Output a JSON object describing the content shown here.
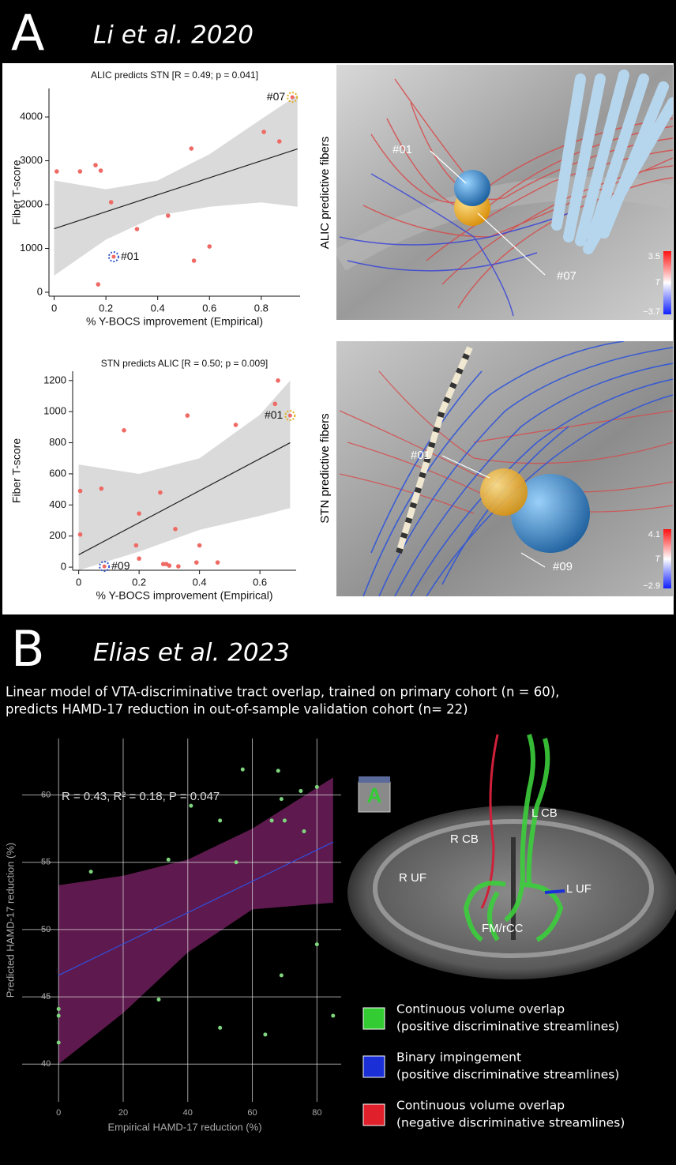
{
  "panel_a": {
    "letter": "A",
    "heading": "Li et al. 2020",
    "images": [
      {
        "side_label": "ALIC predictive fibers",
        "markers": [
          "#01",
          "#07"
        ],
        "colorbar": {
          "max": 3.5,
          "symbol": "T",
          "min": {
            "value": -3.7,
            "label": "−3.7"
          }
        }
      },
      {
        "side_label": "STN predictive fibers",
        "markers": [
          "#01",
          "#09"
        ],
        "colorbar": {
          "max": 4.1,
          "symbol": "T",
          "min": {
            "value": -2.9,
            "label": "−2.9"
          }
        }
      }
    ]
  },
  "panel_b": {
    "letter": "B",
    "heading": "Elias et al. 2023",
    "caption": [
      "Linear model of VTA-discriminative tract overlap, trained on primary cohort (n = 60),",
      "predicts HAMD-17 reduction in out-of-sample validation cohort (n= 22)"
    ],
    "image": {
      "orientation_cube": "A",
      "tract_labels": [
        "L CB",
        "R CB",
        "R UF",
        "L UF",
        "FM/rCC"
      ]
    },
    "legend": [
      {
        "label": "Continuous volume overlap",
        "sub": "(positive discriminative streamlines)",
        "color": "#33cc33"
      },
      {
        "label": "Binary impingement",
        "sub": "(positive discriminative streamlines)",
        "color": "#1a2fd6"
      },
      {
        "label": "Continuous volume overlap",
        "sub": "(negative discriminative streamlines)",
        "color": "#e0202a"
      }
    ]
  },
  "chart_data": [
    {
      "type": "scatter",
      "title": "ALIC predicts STN [R = 0.49; p = 0.041]",
      "xlabel": "% Y-BOCS improvement (Empirical)",
      "ylabel": "Fiber T-score",
      "x": [
        0.01,
        0.1,
        0.16,
        0.18,
        0.22,
        0.17,
        0.32,
        0.44,
        0.53,
        0.54,
        0.6,
        0.81,
        0.87
      ],
      "values": [
        2757,
        2757,
        2900,
        2775,
        2054,
        180,
        1441,
        1748,
        3279,
        720,
        1045,
        3658,
        3441
      ],
      "color": "#ef6a64",
      "xlim": [
        -0.02,
        0.95
      ],
      "ylim": [
        -90,
        4650
      ],
      "xticks": [
        0,
        0.2,
        0.4,
        0.6,
        0.8
      ],
      "yticks": [
        0,
        1000,
        2000,
        3000,
        4000
      ],
      "fit": {
        "x": [
          0,
          0.94
        ],
        "values": [
          1450,
          3270
        ],
        "color": "#222222"
      },
      "band": {
        "x": [
          0,
          0.2,
          0.4,
          0.6,
          0.8,
          0.94
        ],
        "upper": [
          2550,
          2350,
          2550,
          3150,
          3950,
          4500
        ],
        "lower": [
          380,
          1200,
          1750,
          1950,
          2050,
          1950
        ],
        "color": "#dadada"
      },
      "highlights": [
        {
          "label": "#01",
          "x": 0.23,
          "y": 810,
          "color": "#3355cc"
        },
        {
          "label": "#07",
          "x": 0.92,
          "y": 4450,
          "color": "#e0b020"
        }
      ]
    },
    {
      "type": "scatter",
      "title": "STN predicts ALIC [R = 0.50; p = 0.009]",
      "xlabel": "% Y-BOCS improvement (Empirical)",
      "ylabel": "Fiber T-score",
      "x": [
        0.005,
        0.005,
        0.075,
        0.15,
        0.19,
        0.2,
        0.2,
        0.27,
        0.28,
        0.29,
        0.3,
        0.32,
        0.33,
        0.36,
        0.39,
        0.4,
        0.46,
        0.52,
        0.65,
        0.66
      ],
      "values": [
        210,
        490,
        505,
        880,
        140,
        345,
        55,
        480,
        20,
        20,
        10,
        245,
        5,
        975,
        30,
        140,
        30,
        915,
        1050,
        1200
      ],
      "color": "#ef6a64",
      "xlim": [
        -0.02,
        0.72
      ],
      "ylim": [
        -20,
        1260
      ],
      "xticks": [
        0,
        0.2,
        0.4,
        0.6
      ],
      "yticks": [
        0,
        200,
        400,
        600,
        800,
        1000,
        1200
      ],
      "fit": {
        "x": [
          0,
          0.7
        ],
        "values": [
          80,
          800
        ],
        "color": "#222222"
      },
      "band": {
        "x": [
          0,
          0.2,
          0.4,
          0.6,
          0.7
        ],
        "upper": [
          660,
          600,
          700,
          980,
          1200
        ],
        "lower": [
          -20,
          100,
          240,
          330,
          380
        ],
        "color": "#dadada"
      },
      "highlights": [
        {
          "label": "#01",
          "x": 0.7,
          "y": 975,
          "color": "#e0b020"
        },
        {
          "label": "#09",
          "x": 0.085,
          "y": 5,
          "color": "#3355cc"
        }
      ]
    },
    {
      "type": "scatter",
      "xlabel": "Empirical HAMD-17 reduction (%)",
      "ylabel": "Predicted HAMD-17 reduction (%)",
      "annotation": "R = 0.43, R² = 0.18, P = 0.047",
      "x": [
        0,
        0,
        0,
        10,
        31,
        34,
        41,
        50,
        50,
        55,
        57,
        64,
        66,
        68,
        69,
        69,
        70,
        75,
        76,
        80,
        80,
        85
      ],
      "values": [
        41.6,
        43.6,
        44.1,
        54.3,
        44.8,
        55.2,
        59.2,
        58.1,
        42.7,
        55.0,
        61.9,
        42.2,
        58.1,
        61.8,
        59.7,
        46.6,
        58.1,
        60.3,
        57.3,
        60.6,
        48.9,
        43.6
      ],
      "color": "#7fd67f",
      "xlim": [
        -11.3,
        87.5
      ],
      "ylim": [
        37.2,
        64.2
      ],
      "xticks": [
        0,
        20,
        40,
        60,
        80
      ],
      "yticks": [
        40,
        45,
        50,
        55,
        60
      ],
      "grid": true,
      "fit": {
        "x": [
          0,
          85
        ],
        "values": [
          46.6,
          56.5
        ],
        "color": "#3050e0"
      },
      "band": {
        "x": [
          0,
          20,
          40,
          60,
          85
        ],
        "upper": [
          53.3,
          54.0,
          55.2,
          57.5,
          61.3
        ],
        "lower": [
          40.0,
          43.8,
          48.3,
          51.5,
          52.0
        ],
        "color": "#5e1a4e"
      }
    }
  ]
}
